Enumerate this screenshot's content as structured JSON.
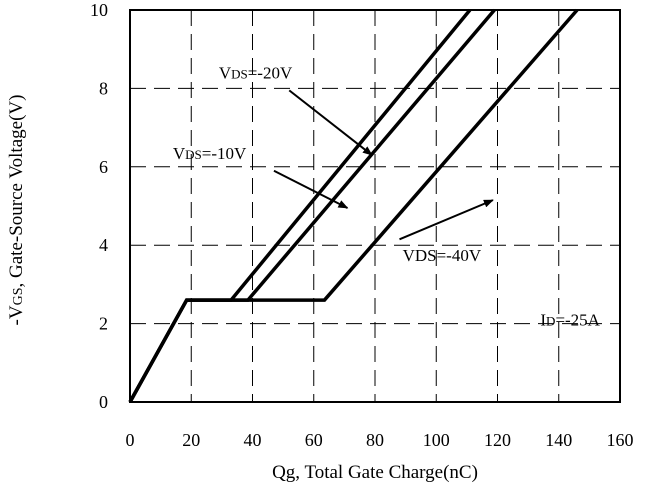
{
  "chart_data": {
    "type": "line",
    "xlabel": "Qg, Total Gate Charge(nC)",
    "ylabel_prefix": "-V",
    "ylabel_sub": "GS",
    "ylabel_rest": ", Gate-Source Voltage(V)",
    "xlim": [
      0,
      160
    ],
    "ylim": [
      0,
      10
    ],
    "xticks": [
      0,
      20,
      40,
      60,
      80,
      100,
      120,
      140,
      160
    ],
    "yticks": [
      0,
      2,
      4,
      6,
      8,
      10
    ],
    "grid": true,
    "grid_style": "dashed",
    "series": [
      {
        "name": "VDS=-10V",
        "x": [
          0,
          18.5,
          33,
          111
        ],
        "y": [
          0,
          2.6,
          2.6,
          10
        ]
      },
      {
        "name": "VDS=-20V",
        "x": [
          0,
          18.5,
          38.5,
          119
        ],
        "y": [
          0,
          2.6,
          2.6,
          10
        ]
      },
      {
        "name": "VDS=-40V",
        "x": [
          0,
          18.5,
          63.5,
          146
        ],
        "y": [
          0,
          2.6,
          2.6,
          10
        ]
      }
    ],
    "annotations": [
      {
        "parts": [
          {
            "t": "V"
          },
          {
            "t": "DS",
            "sub": true
          },
          {
            "t": "=-20V"
          }
        ],
        "x": 29,
        "y": 8.25,
        "arrow_from": [
          52,
          7.95
        ],
        "arrow_to": [
          79,
          6.3
        ]
      },
      {
        "parts": [
          {
            "t": "V"
          },
          {
            "t": "DS",
            "sub": true
          },
          {
            "t": "=-10V"
          }
        ],
        "x": 14,
        "y": 6.2,
        "arrow_from": [
          47,
          5.9
        ],
        "arrow_to": [
          71,
          4.95
        ]
      },
      {
        "parts": [
          {
            "t": "VDS=-40V"
          }
        ],
        "x": 89,
        "y": 3.6,
        "arrow_from": [
          88,
          4.15
        ],
        "arrow_to": [
          118.5,
          5.15
        ]
      },
      {
        "parts": [
          {
            "t": "I"
          },
          {
            "t": "D",
            "sub": true
          },
          {
            "t": "=-25A"
          }
        ],
        "x": 134,
        "y": 1.95
      }
    ]
  }
}
